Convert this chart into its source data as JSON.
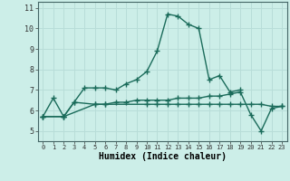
{
  "xlabel": "Humidex (Indice chaleur)",
  "bg_color": "#cceee8",
  "grid_color": "#b8ddd8",
  "line_color": "#1a6b5a",
  "x_ticks": [
    0,
    1,
    2,
    3,
    4,
    5,
    6,
    7,
    8,
    9,
    10,
    11,
    12,
    13,
    14,
    15,
    16,
    17,
    18,
    19,
    20,
    21,
    22,
    23
  ],
  "ylim": [
    4.5,
    11.3
  ],
  "xlim": [
    -0.5,
    23.5
  ],
  "series1_x": [
    0,
    1,
    2,
    3,
    4,
    5,
    6,
    7,
    8,
    9,
    10,
    11,
    12,
    13,
    14,
    15,
    16,
    17,
    18,
    19
  ],
  "series1_y": [
    5.7,
    6.6,
    5.7,
    6.4,
    7.1,
    7.1,
    7.1,
    7.0,
    7.3,
    7.5,
    7.9,
    8.9,
    10.7,
    10.6,
    10.2,
    10.0,
    7.5,
    7.7,
    6.9,
    7.0
  ],
  "series2_x": [
    0,
    2,
    3,
    5,
    6,
    10,
    11,
    12,
    13,
    14,
    15,
    16,
    17,
    18,
    19,
    20,
    21,
    22,
    23
  ],
  "series2_y": [
    5.7,
    5.7,
    6.4,
    6.3,
    6.3,
    6.3,
    6.3,
    6.3,
    6.3,
    6.3,
    6.3,
    6.3,
    6.3,
    6.3,
    6.3,
    6.3,
    6.3,
    6.2,
    6.2
  ],
  "series3_x": [
    0,
    2,
    5,
    6,
    7,
    8,
    9,
    10,
    11,
    12,
    13,
    14,
    15,
    16,
    17,
    18,
    19,
    20,
    21,
    22,
    23
  ],
  "series3_y": [
    5.7,
    5.7,
    6.3,
    6.3,
    6.4,
    6.4,
    6.5,
    6.5,
    6.5,
    6.5,
    6.6,
    6.6,
    6.6,
    6.7,
    6.7,
    6.8,
    6.9,
    5.8,
    5.0,
    6.1,
    6.2
  ]
}
